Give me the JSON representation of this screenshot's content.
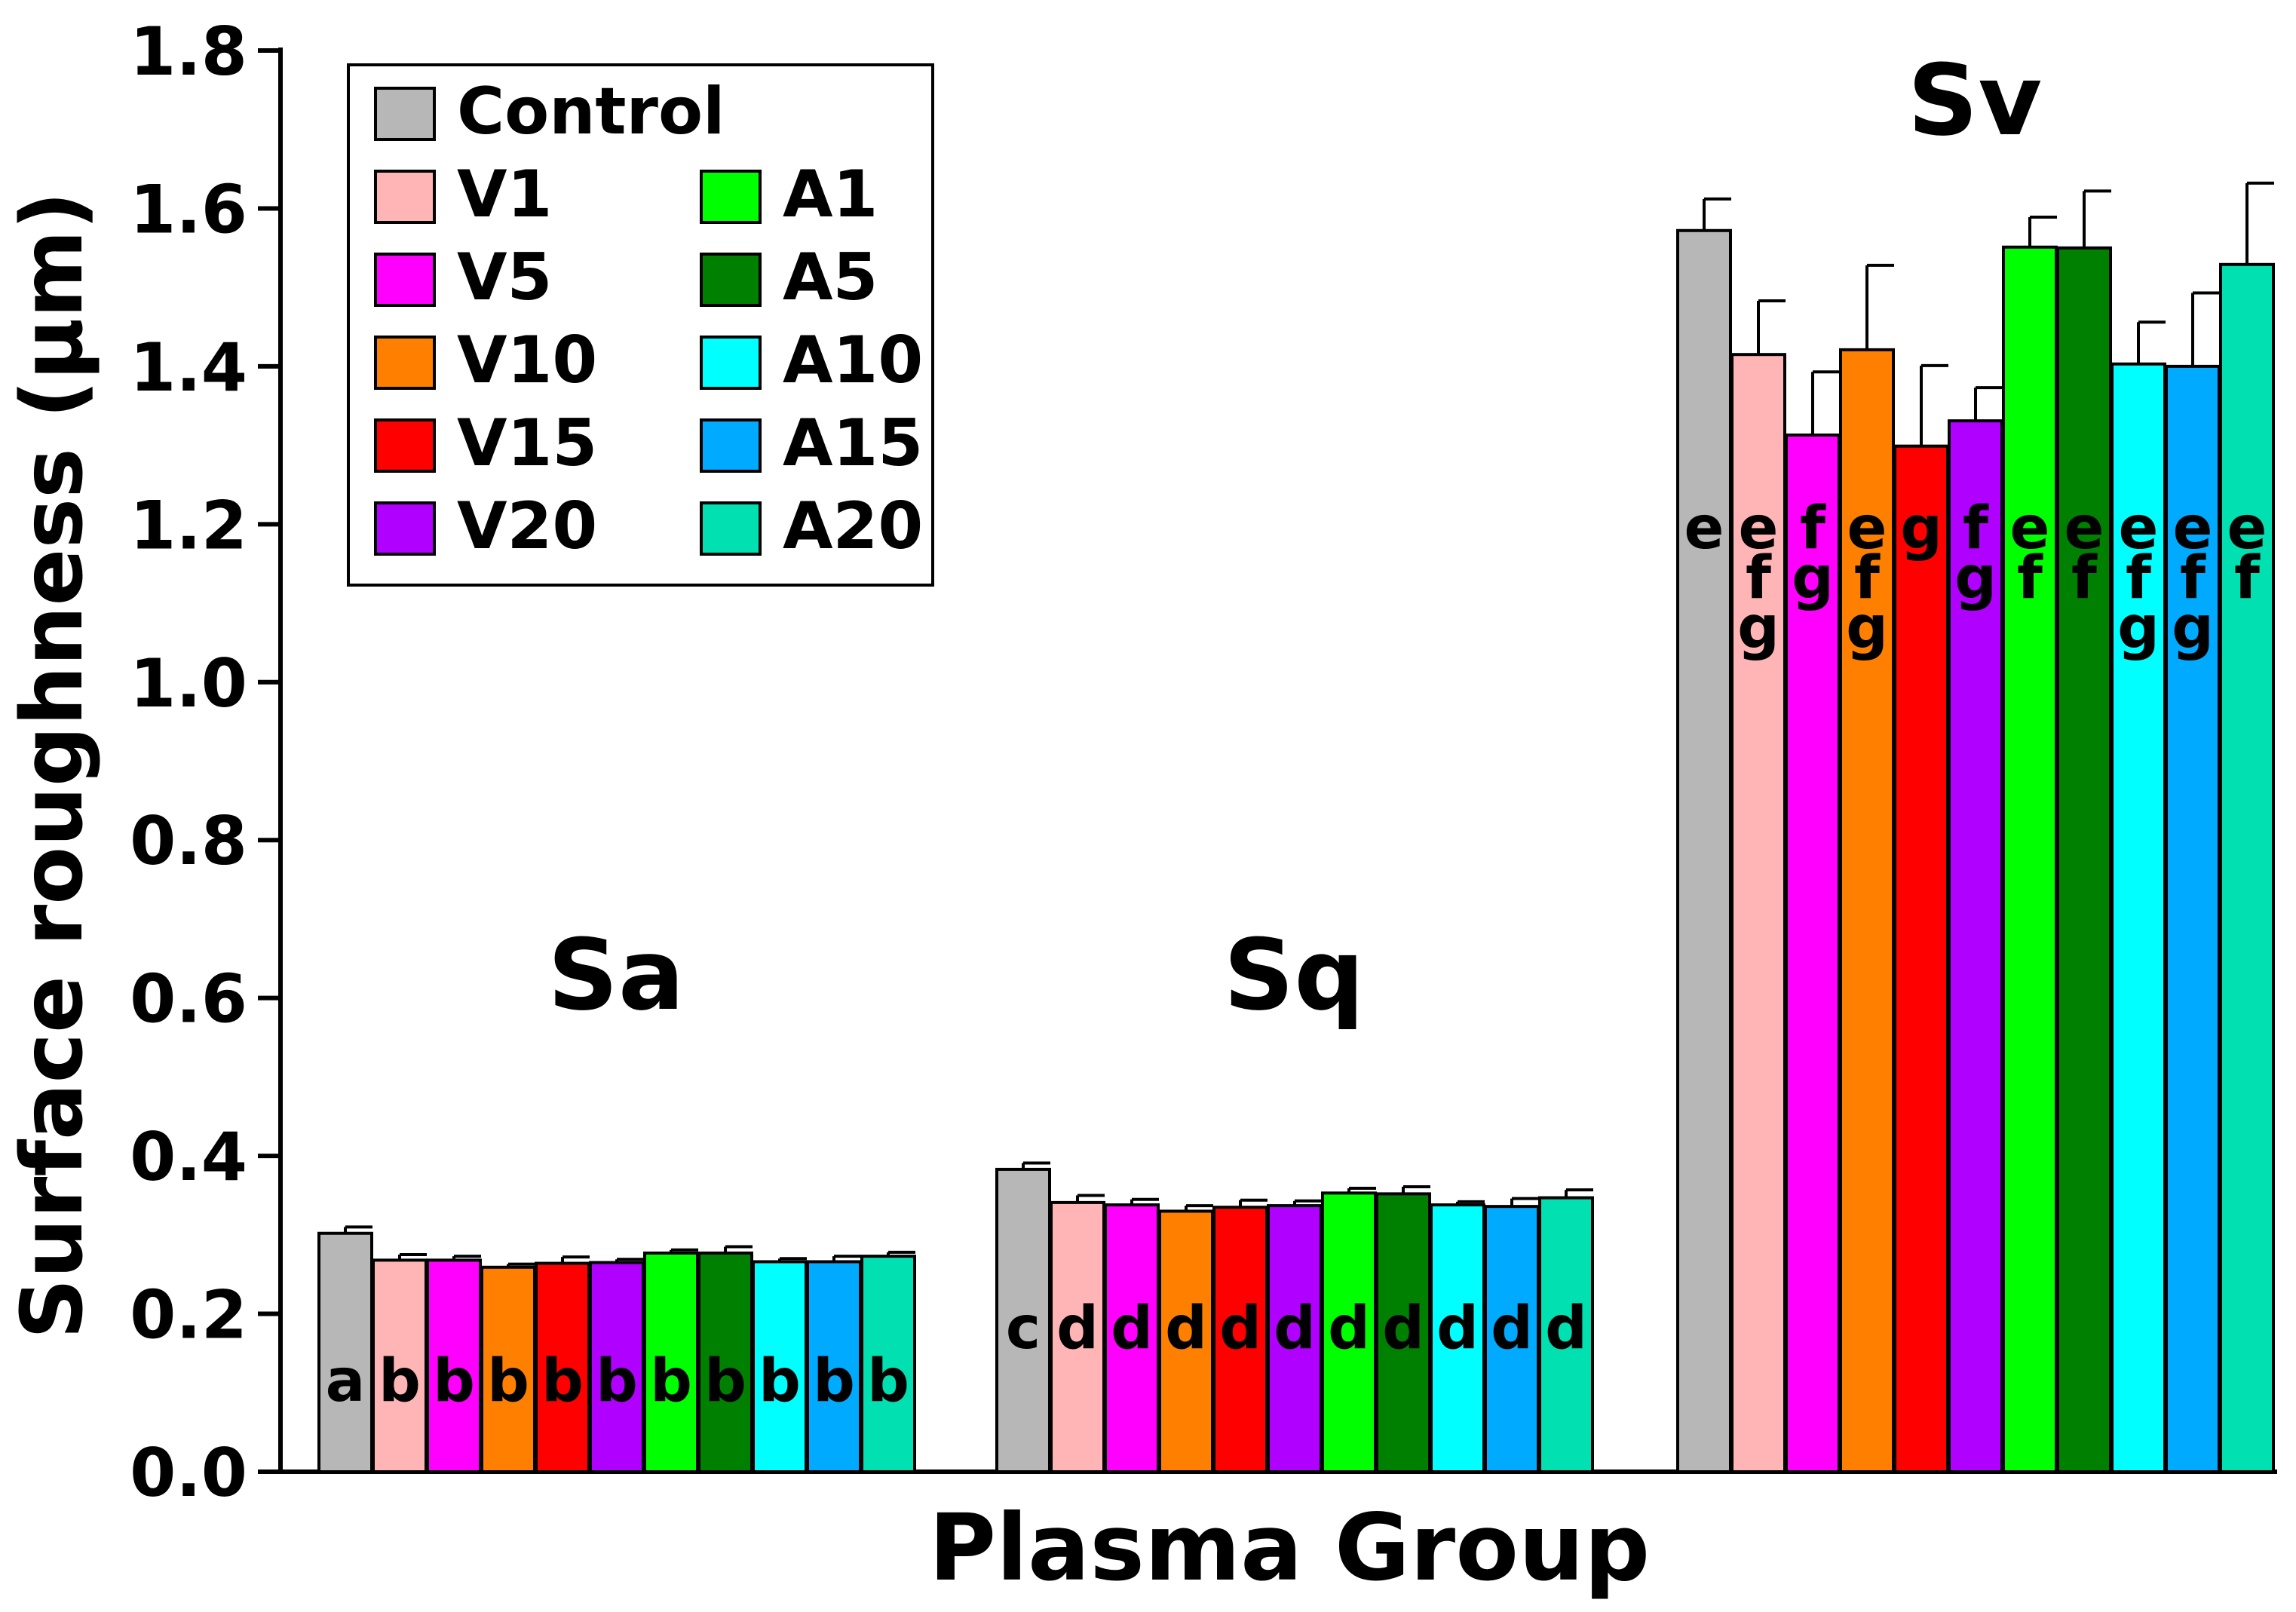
{
  "chart_data": {
    "type": "bar",
    "title": "",
    "xlabel": "Plasma Group",
    "ylabel": "Surface roughness (µm)",
    "ylim": [
      0,
      1.8
    ],
    "yticks": [
      "0.0",
      "0.2",
      "0.4",
      "0.6",
      "0.8",
      "1.0",
      "1.2",
      "1.4",
      "1.6",
      "1.8"
    ],
    "grid": false,
    "legend_position": "top-left",
    "groups": [
      "Sa",
      "Sq",
      "Sv"
    ],
    "series": [
      {
        "name": "Control",
        "color": "#b7b7b7",
        "values": [
          0.302,
          0.383,
          1.572
        ],
        "errors": [
          0.008,
          0.008,
          0.04
        ],
        "letters": [
          "a",
          "c",
          "e"
        ]
      },
      {
        "name": "V1",
        "color": "#ffb5b5",
        "values": [
          0.268,
          0.341,
          1.415
        ],
        "errors": [
          0.007,
          0.009,
          0.068
        ],
        "letters": [
          "b",
          "d",
          "e\nf\ng"
        ]
      },
      {
        "name": "V5",
        "color": "#ff00ff",
        "values": [
          0.268,
          0.338,
          1.313
        ],
        "errors": [
          0.005,
          0.007,
          0.08
        ],
        "letters": [
          "b",
          "d",
          "f\ng"
        ]
      },
      {
        "name": "V10",
        "color": "#ff8000",
        "values": [
          0.259,
          0.33,
          1.421
        ],
        "errors": [
          0.004,
          0.007,
          0.107
        ],
        "letters": [
          "b",
          "d",
          "e\nf\ng"
        ]
      },
      {
        "name": "V15",
        "color": "#ff0000",
        "values": [
          0.264,
          0.335,
          1.299
        ],
        "errors": [
          0.008,
          0.009,
          0.102
        ],
        "letters": [
          "b",
          "d",
          "g"
        ]
      },
      {
        "name": "V20",
        "color": "#b000ff",
        "values": [
          0.265,
          0.337,
          1.331
        ],
        "errors": [
          0.004,
          0.006,
          0.042
        ],
        "letters": [
          "b",
          "d",
          "f\ng"
        ]
      },
      {
        "name": "A1",
        "color": "#00ff00",
        "values": [
          0.277,
          0.353,
          1.551
        ],
        "errors": [
          0.004,
          0.006,
          0.038
        ],
        "letters": [
          "b",
          "d",
          "e\nf"
        ]
      },
      {
        "name": "A5",
        "color": "#008000",
        "values": [
          0.277,
          0.352,
          1.55
        ],
        "errors": [
          0.008,
          0.009,
          0.072
        ],
        "letters": [
          "b",
          "d",
          "e\nf"
        ]
      },
      {
        "name": "A10",
        "color": "#00ffff",
        "values": [
          0.266,
          0.338,
          1.403
        ],
        "errors": [
          0.004,
          0.004,
          0.053
        ],
        "letters": [
          "b",
          "d",
          "e\nf\ng"
        ]
      },
      {
        "name": "A15",
        "color": "#00aaff",
        "values": [
          0.266,
          0.336,
          1.4
        ],
        "errors": [
          0.007,
          0.01,
          0.093
        ],
        "letters": [
          "b",
          "d",
          "e\nf\ng"
        ]
      },
      {
        "name": "A20",
        "color": "#00e0b0",
        "values": [
          0.273,
          0.347,
          1.529
        ],
        "errors": [
          0.005,
          0.01,
          0.103
        ],
        "letters": [
          "b",
          "d",
          "e\nf"
        ]
      }
    ]
  }
}
